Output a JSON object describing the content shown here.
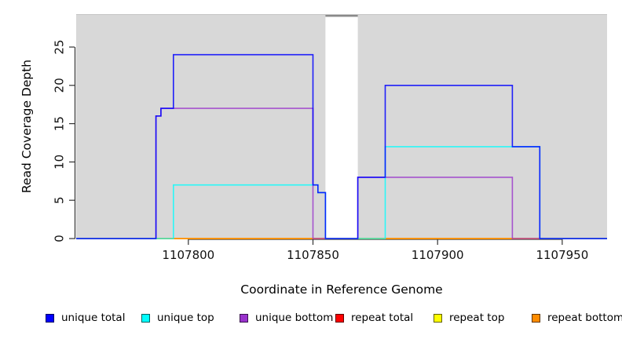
{
  "chart_data": {
    "type": "line",
    "subtype": "step-coverage-plot",
    "title": "",
    "xlabel": "Coordinate in Reference Genome",
    "ylabel": "Read Coverage Depth",
    "xlim": [
      1107755,
      1107968
    ],
    "ylim": [
      0,
      29.3
    ],
    "x_ticks": [
      1107800,
      1107850,
      1107900,
      1107950
    ],
    "y_ticks": [
      0,
      5,
      10,
      15,
      20,
      25
    ],
    "grid": false,
    "background": {
      "panel_color": "#d8d8d8",
      "panels": [
        [
          1107755,
          1107855
        ],
        [
          1107868,
          1107968
        ]
      ],
      "gap_region": [
        1107855,
        1107868
      ],
      "gap_cap_color": "#8a8a8a",
      "top_edge_color": "#c6c6c6"
    },
    "axis_color": "#333333",
    "series": [
      {
        "name": "unique total",
        "color": "#0000FF",
        "opacity": 0.85,
        "points": [
          [
            1107755,
            0
          ],
          [
            1107787,
            0
          ],
          [
            1107787,
            16
          ],
          [
            1107789,
            16
          ],
          [
            1107789,
            17
          ],
          [
            1107794,
            17
          ],
          [
            1107794,
            24
          ],
          [
            1107850,
            24
          ],
          [
            1107850,
            7
          ],
          [
            1107852,
            7
          ],
          [
            1107852,
            6
          ],
          [
            1107855,
            6
          ],
          [
            1107855,
            0
          ],
          [
            1107868,
            0
          ],
          [
            1107868,
            8
          ],
          [
            1107879,
            8
          ],
          [
            1107879,
            20
          ],
          [
            1107930,
            20
          ],
          [
            1107930,
            12
          ],
          [
            1107941,
            12
          ],
          [
            1107941,
            0
          ],
          [
            1107968,
            0
          ]
        ]
      },
      {
        "name": "unique top",
        "color": "#00FFFF",
        "opacity": 0.8,
        "points": [
          [
            1107755,
            0
          ],
          [
            1107794,
            0
          ],
          [
            1107794,
            7
          ],
          [
            1107852,
            7
          ],
          [
            1107852,
            6
          ],
          [
            1107855,
            6
          ],
          [
            1107855,
            0
          ],
          [
            1107879,
            0
          ],
          [
            1107879,
            12
          ],
          [
            1107941,
            12
          ],
          [
            1107941,
            0
          ],
          [
            1107968,
            0
          ]
        ]
      },
      {
        "name": "unique bottom",
        "color": "#9932CC",
        "opacity": 0.8,
        "points": [
          [
            1107755,
            0
          ],
          [
            1107787,
            0
          ],
          [
            1107787,
            16
          ],
          [
            1107789,
            16
          ],
          [
            1107789,
            17
          ],
          [
            1107850,
            17
          ],
          [
            1107850,
            0
          ],
          [
            1107868,
            0
          ],
          [
            1107868,
            8
          ],
          [
            1107930,
            8
          ],
          [
            1107930,
            0
          ],
          [
            1107968,
            0
          ]
        ]
      },
      {
        "name": "repeat total",
        "color": "#FF0000",
        "opacity": 1,
        "points": [
          [
            1107755,
            0
          ],
          [
            1107968,
            0
          ]
        ]
      },
      {
        "name": "repeat top",
        "color": "#FFFF00",
        "opacity": 1,
        "points": [
          [
            1107755,
            0
          ],
          [
            1107968,
            0
          ]
        ]
      },
      {
        "name": "repeat bottom",
        "color": "#FF8C00",
        "opacity": 1,
        "points": [
          [
            1107755,
            0
          ],
          [
            1107968,
            0
          ]
        ]
      }
    ],
    "draw_order": [
      3,
      4,
      5,
      2,
      1,
      0
    ],
    "legend": {
      "position": "bottom"
    }
  }
}
